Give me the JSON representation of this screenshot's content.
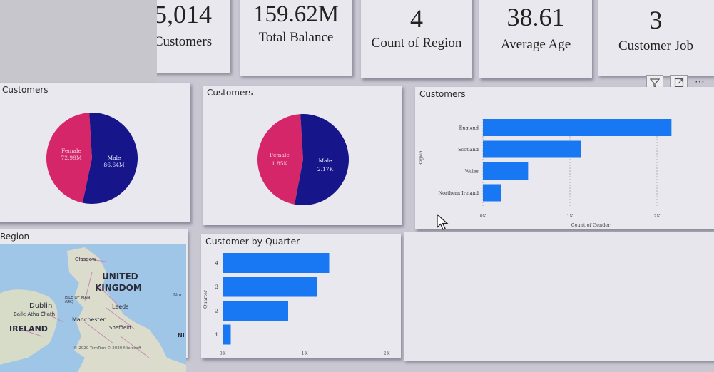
{
  "kpis": [
    {
      "value": "5,014",
      "label": "Customers"
    },
    {
      "value": "159.62M",
      "label": "Total Balance"
    },
    {
      "value": "4",
      "label": "Count of Region"
    },
    {
      "value": "38.61",
      "label": "Average Age"
    },
    {
      "value": "3",
      "label": "Customer Job"
    }
  ],
  "visual_header": {
    "filter_icon": "filter-icon",
    "focus_icon": "focus-mode-icon",
    "more": "⋯"
  },
  "pie_balance": {
    "title": "Customers",
    "slices": [
      {
        "name": "Female",
        "label": "72.99M",
        "value": 72.99,
        "color": "#d6266a"
      },
      {
        "name": "Male",
        "label": "86.64M",
        "value": 86.64,
        "color": "#16168a"
      }
    ]
  },
  "pie_count": {
    "title": "Customers",
    "slices": [
      {
        "name": "Female",
        "label": "1.85K",
        "value": 1.85,
        "color": "#d6266a"
      },
      {
        "name": "Male",
        "label": "2.17K",
        "value": 2.17,
        "color": "#16168a"
      }
    ]
  },
  "chart_data": [
    {
      "type": "bar",
      "title": "Customers",
      "categories": [
        "England",
        "Scotland",
        "Wales",
        "Northern Ireland"
      ],
      "values": [
        2170,
        1130,
        520,
        210
      ],
      "xlabel": "Count of Gender",
      "ylabel": "Region",
      "xticks": [
        "0K",
        "1K",
        "2K"
      ],
      "xlim": [
        0,
        2200
      ],
      "grid": true,
      "color": "#1877f2"
    },
    {
      "type": "bar",
      "title": "Customer by Quarter",
      "categories": [
        "4",
        "3",
        "2",
        "1"
      ],
      "values": [
        1300,
        1150,
        800,
        100
      ],
      "xlabel": "",
      "ylabel": "Quarter",
      "xticks": [
        "0K",
        "1K",
        "2K"
      ],
      "xlim": [
        0,
        2000
      ],
      "grid": false,
      "color": "#1877f2"
    }
  ],
  "map": {
    "title": "Region",
    "labels": {
      "uk": "UNITED KINGDOM",
      "ireland": "IRELAND",
      "dublin": "Dublin",
      "manchester": "Manchester",
      "leeds": "Leeds",
      "glasgow": "Glasgow",
      "isle_of_man": "ISLE OF MAN (UK)",
      "sheffield": "Sheffield",
      "baile_atha_cliath": "Baile Átha Cliath",
      "nl": "NI",
      "nor": "Nor"
    },
    "copyright": "© 2020 TomTom © 2020 Microsoft"
  }
}
